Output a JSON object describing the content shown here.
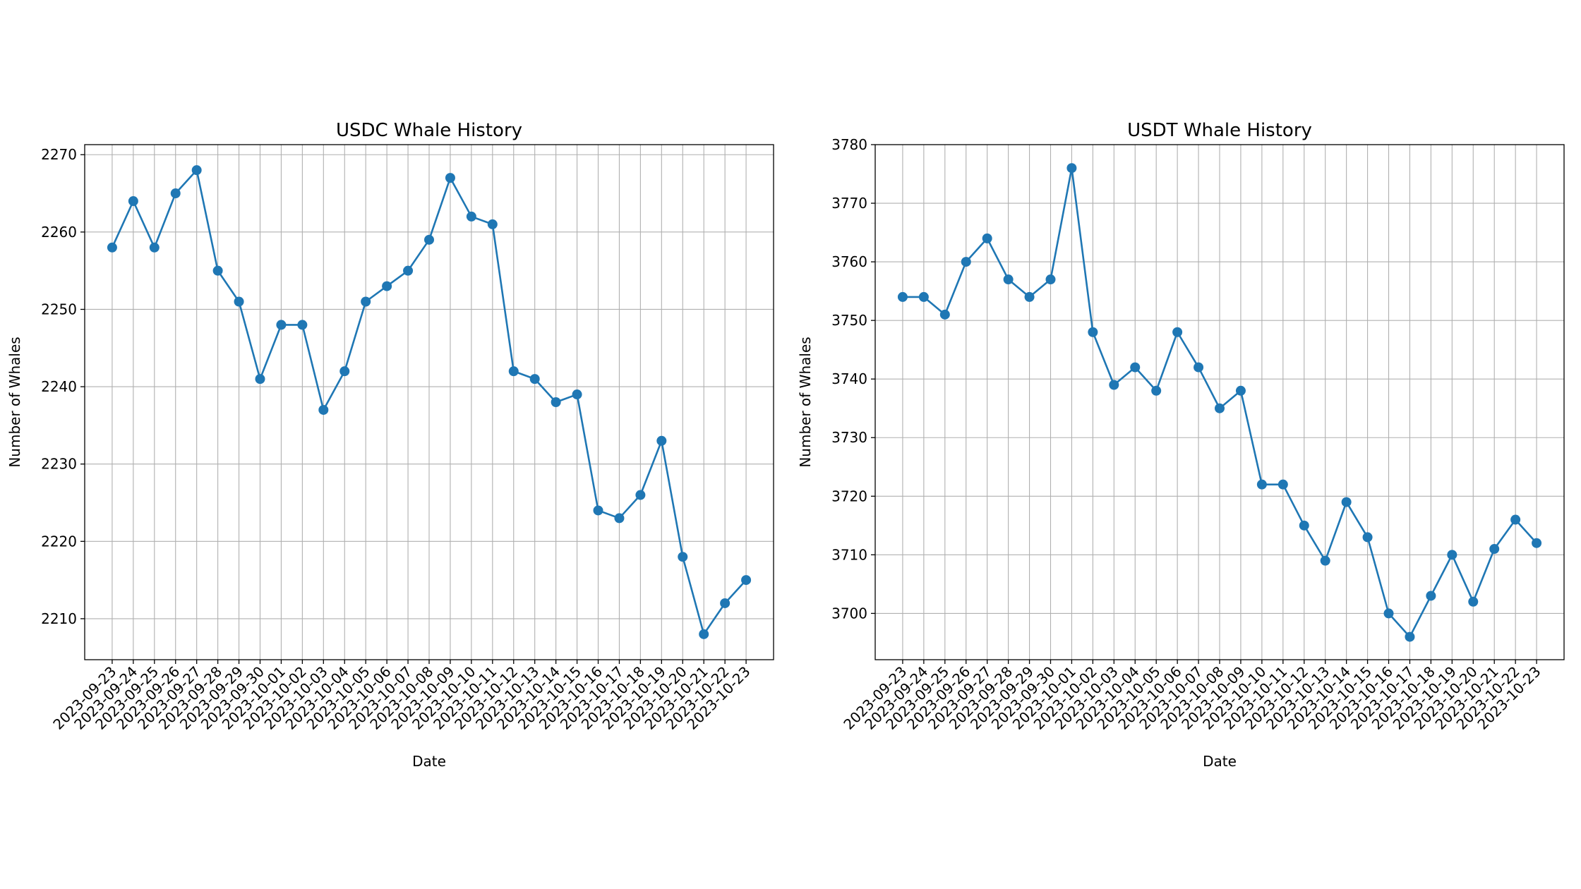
{
  "chart_data": [
    {
      "type": "line",
      "title": "USDC Whale History",
      "xlabel": "Date",
      "ylabel": "Number of Whales",
      "categories": [
        "2023-09-23",
        "2023-09-24",
        "2023-09-25",
        "2023-09-26",
        "2023-09-27",
        "2023-09-28",
        "2023-09-29",
        "2023-09-30",
        "2023-10-01",
        "2023-10-02",
        "2023-10-03",
        "2023-10-04",
        "2023-10-05",
        "2023-10-06",
        "2023-10-07",
        "2023-10-08",
        "2023-10-09",
        "2023-10-10",
        "2023-10-11",
        "2023-10-12",
        "2023-10-13",
        "2023-10-14",
        "2023-10-15",
        "2023-10-16",
        "2023-10-17",
        "2023-10-18",
        "2023-10-19",
        "2023-10-20",
        "2023-10-21",
        "2023-10-22",
        "2023-10-23"
      ],
      "values": [
        2258,
        2264,
        2258,
        2265,
        2268,
        2255,
        2251,
        2241,
        2248,
        2248,
        2237,
        2242,
        2251,
        2253,
        2255,
        2259,
        2267,
        2262,
        2261,
        2242,
        2241,
        2238,
        2239,
        2224,
        2223,
        2226,
        2233,
        2218,
        2208,
        2212,
        2215
      ],
      "ylim": [
        2204.7,
        2271.3
      ],
      "yticks": [
        2210,
        2220,
        2230,
        2240,
        2250,
        2260,
        2270
      ],
      "grid": true,
      "marker": "circle",
      "color": "#1f77b4"
    },
    {
      "type": "line",
      "title": "USDT Whale History",
      "xlabel": "Date",
      "ylabel": "Number of Whales",
      "categories": [
        "2023-09-23",
        "2023-09-24",
        "2023-09-25",
        "2023-09-26",
        "2023-09-27",
        "2023-09-28",
        "2023-09-29",
        "2023-09-30",
        "2023-10-01",
        "2023-10-02",
        "2023-10-03",
        "2023-10-04",
        "2023-10-05",
        "2023-10-06",
        "2023-10-07",
        "2023-10-08",
        "2023-10-09",
        "2023-10-10",
        "2023-10-11",
        "2023-10-12",
        "2023-10-13",
        "2023-10-14",
        "2023-10-15",
        "2023-10-16",
        "2023-10-17",
        "2023-10-18",
        "2023-10-19",
        "2023-10-20",
        "2023-10-21",
        "2023-10-22",
        "2023-10-23"
      ],
      "values": [
        3754,
        3754,
        3751,
        3760,
        3764,
        3757,
        3754,
        3757,
        3776,
        3748,
        3739,
        3742,
        3738,
        3748,
        3742,
        3735,
        3738,
        3722,
        3722,
        3715,
        3709,
        3719,
        3713,
        3700,
        3696,
        3703,
        3710,
        3702,
        3711,
        3716,
        3712
      ],
      "ylim": [
        3692.1,
        3780
      ],
      "yticks": [
        3700,
        3710,
        3720,
        3730,
        3740,
        3750,
        3760,
        3770,
        3780
      ],
      "grid": true,
      "marker": "circle",
      "color": "#1f77b4"
    }
  ]
}
